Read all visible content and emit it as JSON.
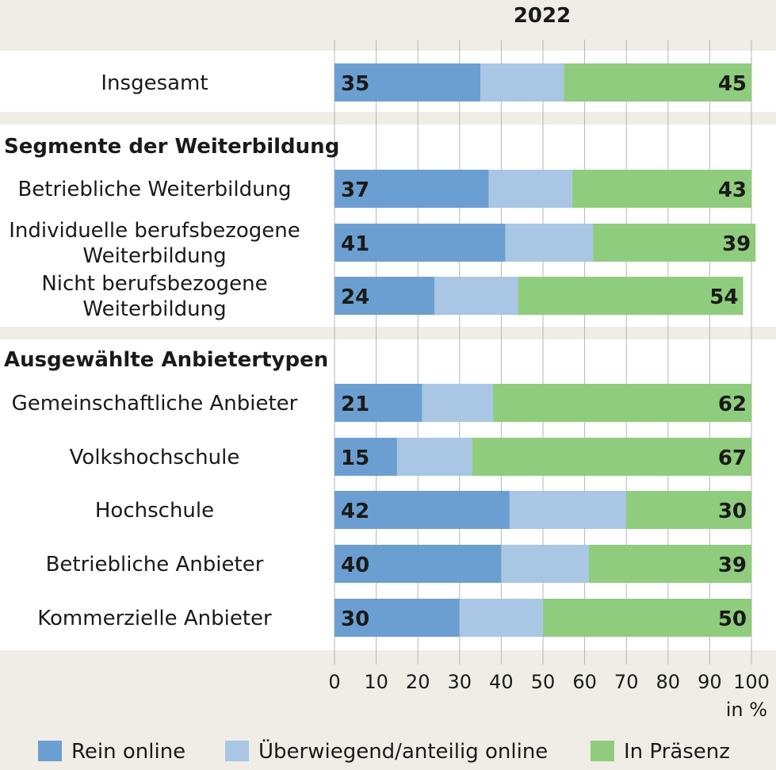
{
  "chart_data": {
    "type": "bar",
    "orientation": "horizontal",
    "stacked": true,
    "title": "2022",
    "xlabel": "in %",
    "xlim": [
      0,
      100
    ],
    "xticks": [
      "0",
      "10",
      "20",
      "30",
      "40",
      "50",
      "60",
      "70",
      "80",
      "90",
      "100"
    ],
    "grid": true,
    "legend_position": "bottom",
    "colors": {
      "rein_online": "#6c9fd1",
      "ueberwiegend_online": "#a9c6e4",
      "praesenz": "#8fcc7d"
    },
    "series_names": [
      "Rein online",
      "Überwiegend/anteilig online",
      "In Präsenz"
    ],
    "groups": [
      {
        "heading": ""
      },
      {
        "heading": "Segmente der Weiterbildung"
      },
      {
        "heading": "Ausgewählte Anbietertypen"
      }
    ],
    "rows": [
      {
        "group": 0,
        "label": [
          "Insgesamt"
        ],
        "values": [
          35,
          20,
          45
        ],
        "label_online": "35",
        "label_praesenz": "45"
      },
      {
        "group": 1,
        "label": [
          "Betriebliche Weiterbildung"
        ],
        "values": [
          37,
          20,
          43
        ],
        "label_online": "37",
        "label_praesenz": "43"
      },
      {
        "group": 1,
        "label": [
          "Individuelle berufsbezogene",
          "Weiterbildung"
        ],
        "values": [
          41,
          21,
          39
        ],
        "label_online": "41",
        "label_praesenz": "39"
      },
      {
        "group": 1,
        "label": [
          "Nicht berufsbezogene",
          "Weiterbildung"
        ],
        "values": [
          24,
          20,
          54
        ],
        "label_online": "24",
        "label_praesenz": "54"
      },
      {
        "group": 2,
        "label": [
          "Gemeinschaftliche Anbieter"
        ],
        "values": [
          21,
          17,
          62
        ],
        "label_online": "21",
        "label_praesenz": "62"
      },
      {
        "group": 2,
        "label": [
          "Volkshochschule"
        ],
        "values": [
          15,
          18,
          67
        ],
        "label_online": "15",
        "label_praesenz": "67"
      },
      {
        "group": 2,
        "label": [
          "Hochschule"
        ],
        "values": [
          42,
          28,
          30
        ],
        "label_online": "42",
        "label_praesenz": "30"
      },
      {
        "group": 2,
        "label": [
          "Betriebliche Anbieter"
        ],
        "values": [
          40,
          21,
          39
        ],
        "label_online": "40",
        "label_praesenz": "39"
      },
      {
        "group": 2,
        "label": [
          "Kommerzielle Anbieter"
        ],
        "values": [
          30,
          20,
          50
        ],
        "label_online": "30",
        "label_praesenz": "50"
      }
    ]
  }
}
